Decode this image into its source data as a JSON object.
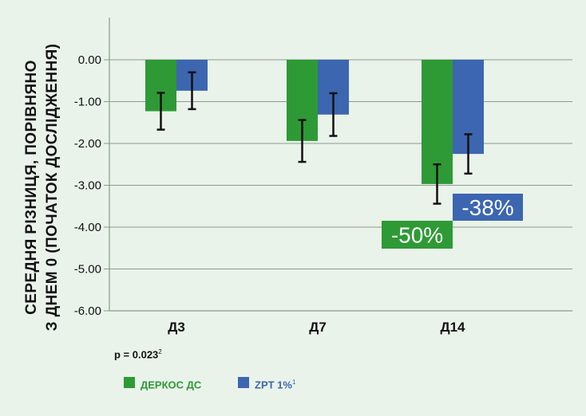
{
  "chart_data": {
    "type": "bar",
    "ylabel_line1": "СЕРЕДНЯ РІЗНИЦЯ, ПОРІВНЯНО",
    "ylabel_line2": "З ДНЕМ 0 (ПОЧАТОК ДОСЛІДЖЕННЯ)",
    "xlabel": "",
    "ylim": [
      -6.0,
      0.0
    ],
    "yticks": [
      "0.00",
      "-1.00",
      "-2.00",
      "-3.00",
      "-4.00",
      "-5.00",
      "-6.00"
    ],
    "ytick_values": [
      0,
      -1,
      -2,
      -3,
      -4,
      -5,
      -6
    ],
    "grid": true,
    "categories": [
      "Д3",
      "Д7",
      "Д14"
    ],
    "series": [
      {
        "name": "ДЕРКОС ДС",
        "color": "#2e9a35",
        "values": [
          -1.23,
          -1.94,
          -2.97
        ],
        "error": [
          0.44,
          0.5,
          0.47
        ]
      },
      {
        "name": "ZPT 1%",
        "color": "#3c66b0",
        "values": [
          -0.74,
          -1.31,
          -2.25
        ],
        "error": [
          0.44,
          0.51,
          0.47
        ]
      }
    ],
    "annotations": [
      {
        "text": "-50%",
        "color": "#2e9a35"
      },
      {
        "text": "-38%",
        "color": "#3c66b0"
      }
    ]
  },
  "note": {
    "text": "p = 0.023",
    "sup": "2"
  },
  "legend": [
    {
      "label": "ДЕРКОС ДС",
      "sup": "",
      "color": "#2e9a35",
      "text_color": "#2e9a35"
    },
    {
      "label": "ZPT 1%",
      "sup": "1",
      "color": "#3c66b0",
      "text_color": "#3c66b0"
    }
  ]
}
